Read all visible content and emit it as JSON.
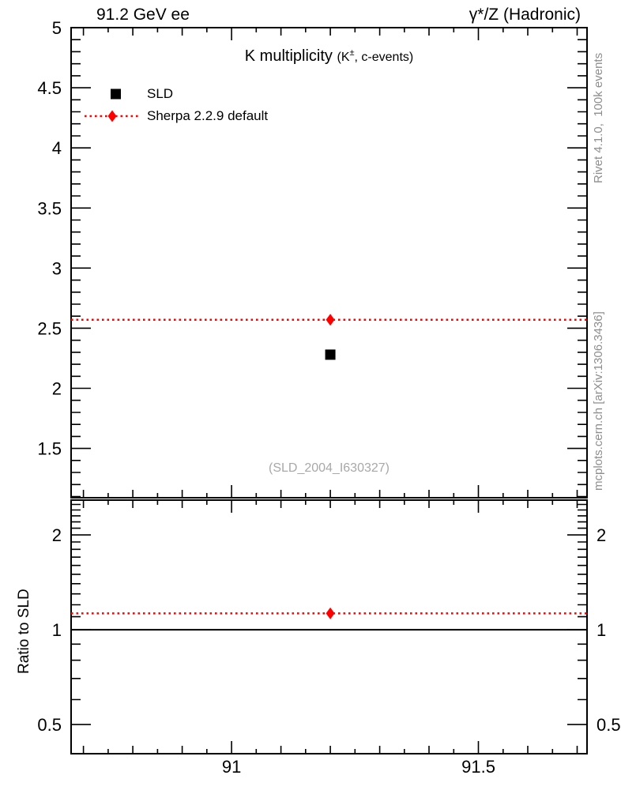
{
  "header": {
    "left": "91.2 GeV ee",
    "right": "γ*/Z (Hadronic)"
  },
  "plot_title": {
    "main": "K multiplicity ",
    "detail_pre": "(K",
    "detail_sup": "±",
    "detail_post": ", c-events)"
  },
  "legend": [
    {
      "label": "SLD",
      "marker": "black-square"
    },
    {
      "label": "Sherpa 2.2.9 default",
      "marker": "red-diamond-dotted-line"
    }
  ],
  "watermark": "(SLD_2004_I630327)",
  "side_notes": {
    "top": "Rivet 4.1.0,  100k events",
    "bottom": "mcplots.cern.ch [arXiv:1306.3436]"
  },
  "ratio_axis_title": "Ratio to SLD",
  "colors": {
    "data": "#000000",
    "mc": "#ff0000",
    "note_gray": "#8e8e8e",
    "watermark_gray": "#a8a8a8"
  },
  "chart_data": [
    {
      "type": "scatter",
      "panel": "main",
      "title": "K multiplicity (K±, c-events)",
      "xlabel": "",
      "ylabel": "",
      "xlim": [
        90.675,
        91.72
      ],
      "ylim": [
        1.09,
        5.0
      ],
      "yscale": "linear",
      "grid": false,
      "x_ticks": [
        {
          "v": 91,
          "label": "91"
        },
        {
          "v": 91.5,
          "label": "91.5"
        }
      ],
      "x_minor_step": 0.05,
      "y_ticks": [
        {
          "v": 1.5,
          "label": "1.5"
        },
        {
          "v": 2,
          "label": "2"
        },
        {
          "v": 2.5,
          "label": "2.5"
        },
        {
          "v": 3,
          "label": "3"
        },
        {
          "v": 3.5,
          "label": "3.5"
        },
        {
          "v": 4,
          "label": "4"
        },
        {
          "v": 4.5,
          "label": "4.5"
        },
        {
          "v": 5,
          "label": "5"
        }
      ],
      "y_minor_step": 0.1,
      "series": [
        {
          "name": "SLD",
          "type": "points",
          "marker": "square",
          "color": "#000000",
          "points": [
            {
              "x": 91.2,
              "y": 2.28
            }
          ]
        },
        {
          "name": "Sherpa 2.2.9 default",
          "type": "hline-points",
          "marker": "diamond",
          "color": "#ff0000",
          "line_style": "dotted",
          "points": [
            {
              "x": 91.2,
              "y": 2.57
            }
          ]
        }
      ]
    },
    {
      "type": "ratio",
      "panel": "ratio",
      "ylabel": "Ratio to SLD",
      "yscale": "log",
      "ylim": [
        0.404,
        2.58
      ],
      "y_ticks": [
        {
          "v": 0.5,
          "label": "0.5"
        },
        {
          "v": 1,
          "label": "1"
        },
        {
          "v": 2,
          "label": "2"
        }
      ],
      "y_minor_ticks": [
        0.6,
        0.7,
        0.8,
        0.9,
        1.1,
        1.2,
        1.3,
        1.4,
        1.5,
        1.6,
        1.7,
        1.8,
        1.9,
        2.1,
        2.2,
        2.3,
        2.4,
        2.5
      ],
      "reference_line": 1.0,
      "series": [
        {
          "name": "Sherpa 2.2.9 default",
          "type": "hline-points",
          "marker": "diamond",
          "color": "#ff0000",
          "line_style": "dotted",
          "points": [
            {
              "x": 91.2,
              "y": 1.127
            }
          ]
        }
      ]
    }
  ]
}
